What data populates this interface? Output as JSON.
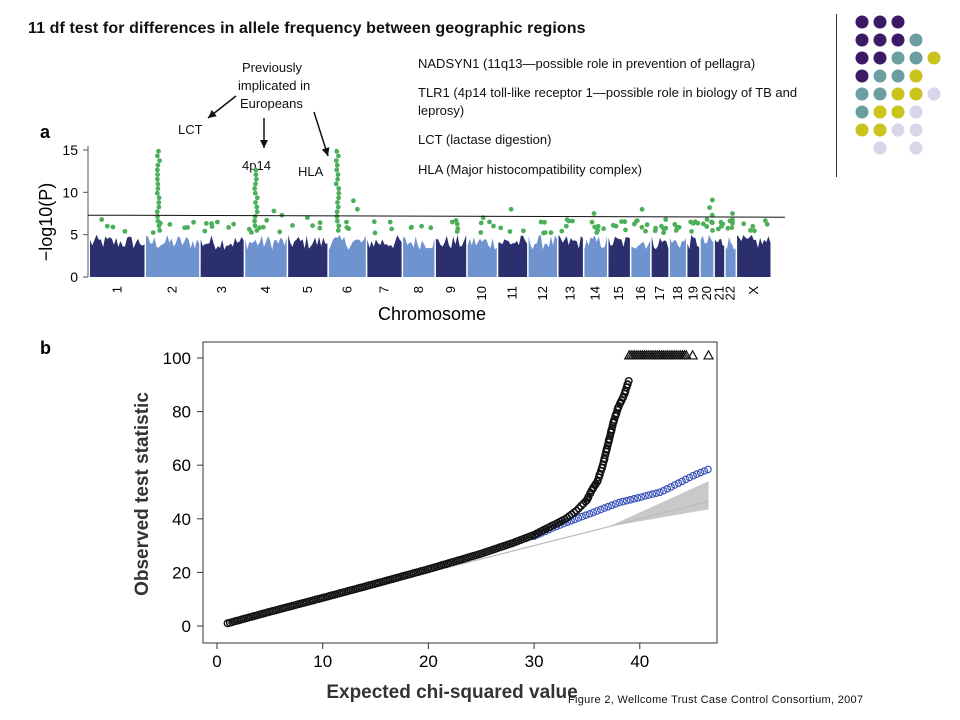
{
  "slide": {
    "title": "11 df test for differences in allele frequency between geographic regions",
    "credit": "Figure 2, Wellcome Trust Case Control Consortium, 2007"
  },
  "annotations": {
    "prev_line1": "Previously",
    "prev_line2": "implicated in",
    "prev_line3": "Europeans",
    "lct": "LCT",
    "p14": "4p14",
    "hla": "HLA"
  },
  "gene_notes": [
    "NADSYN1 (11q13—possible role in prevention of pellagra)",
    "TLR1 (4p14 toll-like receptor 1—possible role in biology of TB and leprosy)",
    "LCT (lactase digestion)",
    "HLA (Major histocompatibility complex)"
  ],
  "palette": {
    "purple": "#3b1a66",
    "teal": "#6a9ea0",
    "olive": "#c8c41c",
    "lavender": "#d8d6ea",
    "dark_blue": "#2b2f6e",
    "light_blue": "#6f93cf",
    "green_hits": "#4caf5a",
    "qq_blue": "#3a52b8"
  },
  "chart_data": [
    {
      "type": "scatter",
      "panel_label": "a",
      "xlabel": "Chromosome",
      "ylabel": "−log10(P)",
      "ylim": [
        0,
        15
      ],
      "yticks": [
        0,
        5,
        10,
        15
      ],
      "categories": [
        "1",
        "2",
        "3",
        "4",
        "5",
        "6",
        "7",
        "8",
        "9",
        "10",
        "11",
        "12",
        "13",
        "14",
        "15",
        "16",
        "17",
        "18",
        "19",
        "20",
        "21",
        "22",
        "X"
      ],
      "threshold": 7.3,
      "peaks": [
        {
          "chromosome": "1",
          "value": 6.0
        },
        {
          "chromosome": "2",
          "value": 15.2
        },
        {
          "chromosome": "3",
          "value": 6.5
        },
        {
          "chromosome": "4",
          "value": 13.0
        },
        {
          "chromosome": "5",
          "value": 7.0
        },
        {
          "chromosome": "6",
          "value": 15.0
        },
        {
          "chromosome": "7",
          "value": 6.5
        },
        {
          "chromosome": "8",
          "value": 6.0
        },
        {
          "chromosome": "9",
          "value": 6.5
        },
        {
          "chromosome": "10",
          "value": 7.0
        },
        {
          "chromosome": "11",
          "value": 8.0
        },
        {
          "chromosome": "12",
          "value": 6.5
        },
        {
          "chromosome": "13",
          "value": 6.0
        },
        {
          "chromosome": "14",
          "value": 7.5
        },
        {
          "chromosome": "15",
          "value": 6.0
        },
        {
          "chromosome": "16",
          "value": 8.0
        },
        {
          "chromosome": "17",
          "value": 6.0
        },
        {
          "chromosome": "18",
          "value": 5.5
        },
        {
          "chromosome": "19",
          "value": 6.5
        },
        {
          "chromosome": "20",
          "value": 9.3
        },
        {
          "chromosome": "21",
          "value": 6.0
        },
        {
          "chromosome": "22",
          "value": 7.5
        },
        {
          "chromosome": "X",
          "value": 5.5
        }
      ]
    },
    {
      "type": "scatter",
      "panel_label": "b",
      "xlabel": "Expected chi-squared value",
      "ylabel": "Observed test statistic",
      "xlim": [
        0,
        47
      ],
      "ylim": [
        0,
        102
      ],
      "xticks": [
        0,
        10,
        20,
        30,
        40
      ],
      "yticks": [
        0,
        20,
        40,
        60,
        80,
        100
      ],
      "series": [
        {
          "marker": "circle-black",
          "points": [
            [
              1,
              1
            ],
            [
              5,
              5.3
            ],
            [
              10,
              10.5
            ],
            [
              15,
              15.8
            ],
            [
              20,
              21.2
            ],
            [
              25,
              27
            ],
            [
              28,
              31
            ],
            [
              30,
              34
            ],
            [
              32,
              38
            ],
            [
              33,
              40
            ],
            [
              34,
              43
            ],
            [
              35,
              47
            ],
            [
              35.5,
              51
            ],
            [
              36,
              54
            ],
            [
              36.5,
              60
            ],
            [
              37,
              68
            ],
            [
              37.5,
              76
            ],
            [
              38,
              82
            ],
            [
              38.5,
              86
            ],
            [
              39,
              92
            ]
          ]
        },
        {
          "marker": "circle-blue",
          "points": [
            [
              30,
              33.5
            ],
            [
              32,
              37
            ],
            [
              34,
              40
            ],
            [
              36,
              43
            ],
            [
              38,
              46
            ],
            [
              40,
              48
            ],
            [
              42,
              50
            ],
            [
              43,
              52
            ],
            [
              44,
              54
            ],
            [
              45,
              56
            ],
            [
              46.5,
              58.5
            ]
          ]
        },
        {
          "marker": "triangle-open",
          "points": [
            [
              39,
              101
            ],
            [
              40,
              101
            ],
            [
              41,
              101
            ],
            [
              42,
              101
            ],
            [
              43,
              101
            ],
            [
              44,
              101
            ],
            [
              45,
              101
            ],
            [
              46.5,
              101
            ]
          ]
        }
      ],
      "band": {
        "lower": [
          [
            1,
            1
          ],
          [
            37,
            37
          ],
          [
            46.5,
            43.5
          ]
        ],
        "upper": [
          [
            1,
            1
          ],
          [
            37,
            37
          ],
          [
            46.5,
            54
          ]
        ]
      },
      "null_line": [
        [
          1,
          1
        ],
        [
          46.5,
          46.5
        ]
      ]
    }
  ]
}
